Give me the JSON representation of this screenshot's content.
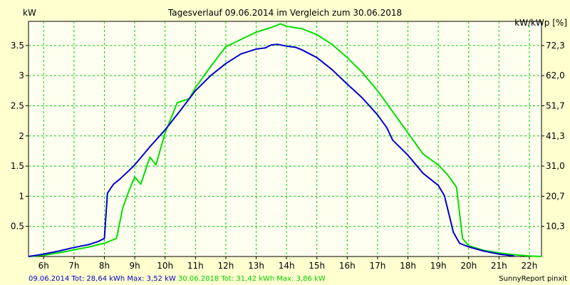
{
  "chart_data": {
    "type": "line",
    "title": "Tagesverlauf 09.06.2014 im Vergleich zum 30.06.2018",
    "ylabel_left": "kW",
    "ylabel_right": "kW/kWp [%]",
    "xlim": [
      5.5,
      22.4
    ],
    "ylim": [
      0,
      3.9
    ],
    "grid": true,
    "x_ticks": [
      6,
      7,
      8,
      9,
      10,
      11,
      12,
      13,
      14,
      15,
      16,
      17,
      18,
      19,
      20,
      21,
      22
    ],
    "x_tick_labels": [
      "6h",
      "7h",
      "8h",
      "9h",
      "10h",
      "11h",
      "12h",
      "13h",
      "14h",
      "15h",
      "16h",
      "17h",
      "18h",
      "19h",
      "20h",
      "21h",
      "22h"
    ],
    "y_ticks_left": [
      0.5,
      1,
      1.5,
      2,
      2.5,
      3,
      3.5
    ],
    "y_tick_labels_left": [
      "0.5",
      "1",
      "1.5",
      "2",
      "2.5",
      "3",
      "3.5"
    ],
    "y_tick_labels_right": [
      "10,3",
      "20,7",
      "31,0",
      "41,3",
      "51,7",
      "62,0",
      "72,3"
    ],
    "series": [
      {
        "name": "09.06.2014",
        "color": "#0000cc",
        "x": [
          5.5,
          6.0,
          6.5,
          7.0,
          7.5,
          7.8,
          8.0,
          8.1,
          8.3,
          8.5,
          8.8,
          9.0,
          9.5,
          10.0,
          10.5,
          11.0,
          11.5,
          12.0,
          12.5,
          13.0,
          13.3,
          13.5,
          13.7,
          14.0,
          14.3,
          14.5,
          15.0,
          15.5,
          16.0,
          16.5,
          17.0,
          17.3,
          17.5,
          18.0,
          18.5,
          19.0,
          19.2,
          19.5,
          19.7,
          20.0,
          20.5,
          21.0,
          21.5
        ],
        "y": [
          0.0,
          0.04,
          0.09,
          0.15,
          0.2,
          0.25,
          0.3,
          1.05,
          1.2,
          1.28,
          1.42,
          1.52,
          1.82,
          2.1,
          2.42,
          2.75,
          3.0,
          3.2,
          3.36,
          3.44,
          3.46,
          3.51,
          3.52,
          3.49,
          3.47,
          3.43,
          3.3,
          3.1,
          2.86,
          2.63,
          2.35,
          2.14,
          1.93,
          1.68,
          1.38,
          1.18,
          1.01,
          0.4,
          0.22,
          0.16,
          0.09,
          0.04,
          0.01
        ]
      },
      {
        "name": "30.06.2018",
        "color": "#00e000",
        "x": [
          5.5,
          6.0,
          6.5,
          7.0,
          7.5,
          8.0,
          8.4,
          8.6,
          8.8,
          9.0,
          9.2,
          9.5,
          9.7,
          10.0,
          10.4,
          10.8,
          11.0,
          11.5,
          12.0,
          12.5,
          13.0,
          13.5,
          13.8,
          14.0,
          14.5,
          15.0,
          15.5,
          16.0,
          16.5,
          17.0,
          17.5,
          18.0,
          18.5,
          19.0,
          19.3,
          19.6,
          19.8,
          20.0,
          20.5,
          21.0,
          21.5,
          22.0,
          22.4
        ],
        "y": [
          0.0,
          0.02,
          0.06,
          0.11,
          0.16,
          0.22,
          0.3,
          0.8,
          1.08,
          1.32,
          1.2,
          1.65,
          1.52,
          2.05,
          2.55,
          2.62,
          2.8,
          3.15,
          3.48,
          3.6,
          3.72,
          3.8,
          3.86,
          3.82,
          3.78,
          3.68,
          3.52,
          3.3,
          3.05,
          2.75,
          2.4,
          2.05,
          1.7,
          1.52,
          1.36,
          1.15,
          0.3,
          0.18,
          0.1,
          0.06,
          0.03,
          0.01,
          0.0
        ]
      }
    ]
  },
  "footer": {
    "series1_text": "09.06.2014 Tot: 28,64 kWh Max: 3,52 kW",
    "series2_text": "30.06.2018 Tot: 31,42 kWh Max: 3,86 kW",
    "brand": "SunnyReport pinxit"
  },
  "colors": {
    "background": "#ffffd0",
    "plot_background": "#fffff0",
    "grid": "#00cc00",
    "series1_text": "#0000cc",
    "series2_text": "#00cc00"
  }
}
